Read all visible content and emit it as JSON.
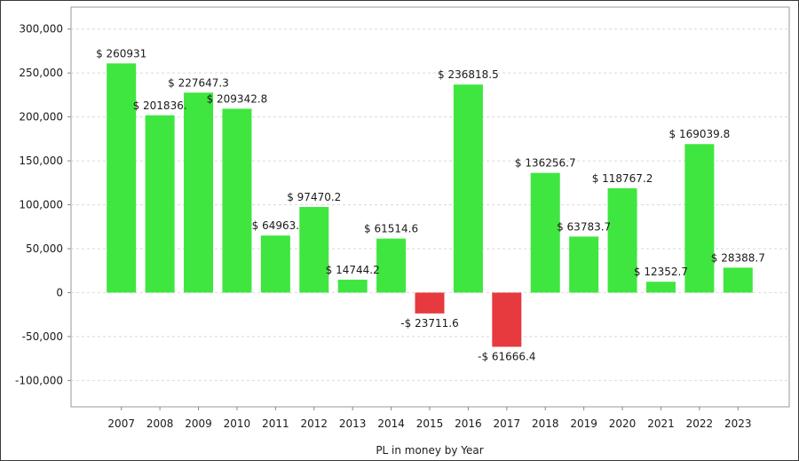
{
  "chart_data": {
    "type": "bar",
    "xlabel": "PL in money by Year",
    "ylabel": "",
    "ylim": [
      -130000,
      325000
    ],
    "yticks": [
      -100000,
      -50000,
      0,
      50000,
      100000,
      150000,
      200000,
      250000,
      300000
    ],
    "ytick_labels": [
      "-100,000",
      "-50,000",
      "0",
      "50,000",
      "100,000",
      "150,000",
      "200,000",
      "250,000",
      "300,000"
    ],
    "grid": true,
    "categories": [
      "2007",
      "2008",
      "2009",
      "2010",
      "2011",
      "2012",
      "2013",
      "2014",
      "2015",
      "2016",
      "2017",
      "2018",
      "2019",
      "2020",
      "2021",
      "2022",
      "2023"
    ],
    "values": [
      260931,
      201836.3,
      227647.3,
      209342.8,
      64963.1,
      97470.2,
      14744.2,
      61514.6,
      -23711.6,
      236818.5,
      -61666.4,
      136256.7,
      63783.7,
      118767.2,
      12352.7,
      169039.8,
      28388.7
    ],
    "labels": [
      "$ 260931",
      "$ 201836.",
      "$ 227647.3",
      "$ 209342.8",
      "$ 64963.",
      "$ 97470.2",
      "$ 14744.2",
      "$ 61514.6",
      "-$ 23711.6",
      "$ 236818.5",
      "-$ 61666.4",
      "$ 136256.7",
      "$ 63783.7",
      "$ 118767.2",
      "$ 12352.7",
      "$ 169039.8",
      "$ 28388.7"
    ],
    "colors": {
      "positive": "#3fe63f",
      "negative": "#e63a3f"
    }
  }
}
